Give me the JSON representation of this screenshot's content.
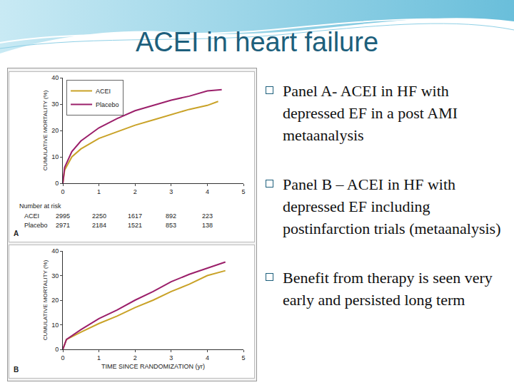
{
  "title": "ACEI in heart failure",
  "bullets": [
    "Panel A- ACEI in HF with depressed EF in a post AMI metaanalysis",
    "Panel B – ACEI in HF with depressed EF including postinfarction trials (metaanalysis)",
    "Benefit from therapy is seen very early and persisted long term"
  ],
  "chart_data": [
    {
      "type": "line",
      "panel": "A",
      "ylabel": "CUMULATIVE MORTALITY (%)",
      "xlim": [
        0,
        5
      ],
      "xticks": [
        0,
        1,
        2,
        3,
        4,
        5
      ],
      "ylim": [
        0,
        40
      ],
      "yticks": [
        0,
        10,
        20,
        30,
        40
      ],
      "grid": false,
      "legend": "upper left",
      "series": [
        {
          "name": "ACEI",
          "color": "#c9a227",
          "x": [
            0,
            0.05,
            0.25,
            0.5,
            1,
            1.5,
            2,
            2.5,
            3,
            3.5,
            4,
            4.3
          ],
          "values": [
            0,
            5,
            10,
            13,
            17,
            19.5,
            22,
            24,
            26,
            28,
            29.5,
            31
          ]
        },
        {
          "name": "Placebo",
          "color": "#9b1f6a",
          "x": [
            0,
            0.05,
            0.25,
            0.5,
            1,
            1.5,
            2,
            2.5,
            3,
            3.5,
            4,
            4.4
          ],
          "values": [
            0,
            6,
            12,
            16,
            21,
            24.5,
            27.5,
            29.5,
            31.5,
            33,
            35,
            35.5
          ]
        }
      ],
      "number_at_risk": {
        "label": "Number at risk",
        "x": [
          0,
          1,
          2,
          3,
          4
        ],
        "rows": [
          {
            "name": "ACEI",
            "values": [
              2995,
              2250,
              1617,
              892,
              223
            ]
          },
          {
            "name": "Placebo",
            "values": [
              2971,
              2184,
              1521,
              853,
              138
            ]
          }
        ]
      }
    },
    {
      "type": "line",
      "panel": "B",
      "xlabel": "TIME SINCE RANDOMIZATION (yr)",
      "ylabel": "CUMULATIVE MORTALITY (%)",
      "xlim": [
        0,
        5
      ],
      "xticks": [
        0,
        1,
        2,
        3,
        4,
        5
      ],
      "ylim": [
        0,
        40
      ],
      "yticks": [
        0,
        10,
        20,
        30,
        40
      ],
      "grid": false,
      "series": [
        {
          "color": "#c9a227",
          "x": [
            0,
            0.1,
            0.5,
            1,
            1.5,
            2,
            2.5,
            3,
            3.5,
            4,
            4.5
          ],
          "values": [
            0,
            4,
            7,
            10.5,
            13.5,
            17,
            20,
            23.5,
            26.5,
            30,
            32
          ]
        },
        {
          "color": "#9b1f6a",
          "x": [
            0,
            0.1,
            0.5,
            1,
            1.5,
            2,
            2.5,
            3,
            3.5,
            4,
            4.5
          ],
          "values": [
            0,
            4,
            8,
            12.5,
            16,
            20,
            23.5,
            27.5,
            30.5,
            33,
            35.5
          ]
        }
      ]
    }
  ]
}
